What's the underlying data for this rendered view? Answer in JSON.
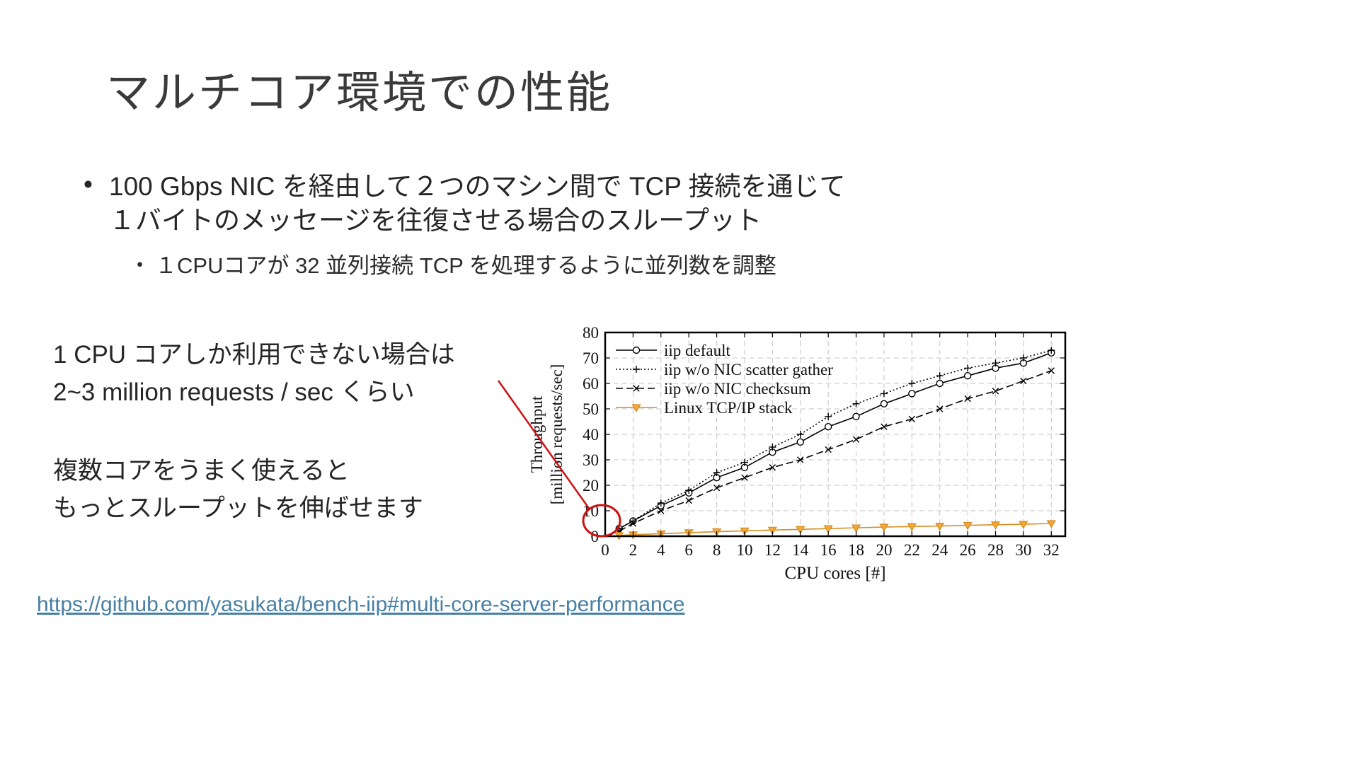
{
  "slide": {
    "title": "マルチコア環境での性能",
    "bullet_char": "•",
    "bullet1_line1": "100 Gbps NIC を経由して２つのマシン間で TCP 接続を通じて",
    "bullet1_line2": "１バイトのメッセージを往復させる場合のスループット",
    "sub_bullet_char": "・",
    "sub_bullet": "１CPUコアが 32 並列接続 TCP を処理するように並列数を調整",
    "note1_line1": "1 CPU コアしか利用できない場合は",
    "note1_line2": "2~3 million requests / sec くらい",
    "note2_line1": "複数コアをうまく使えると",
    "note2_line2": "もっとスループットを伸ばせます",
    "link": "https://github.com/yasukata/bench-iip#multi-core-server-performance"
  },
  "colors": {
    "accent_red": "#cc1111",
    "linux_orange": "#d98c1f",
    "linux_triangle_fill": "#f2a93b",
    "link_blue": "#477fa5",
    "grid_gray": "#c4c4c4",
    "axis_black": "#000000"
  },
  "chart_data": {
    "type": "line",
    "title": "",
    "xlabel": "CPU cores [#]",
    "ylabel": [
      "Throughput",
      "[million requests/sec]"
    ],
    "xlim": [
      0,
      33
    ],
    "ylim": [
      0,
      80
    ],
    "xticks": [
      0,
      2,
      4,
      6,
      8,
      10,
      12,
      14,
      16,
      18,
      20,
      22,
      24,
      26,
      28,
      30,
      32
    ],
    "yticks": [
      0,
      10,
      20,
      30,
      40,
      50,
      60,
      70,
      80
    ],
    "grid": true,
    "legend_position": "top-left",
    "x": [
      1,
      2,
      4,
      6,
      8,
      10,
      12,
      14,
      16,
      18,
      20,
      22,
      24,
      26,
      28,
      30,
      32
    ],
    "series": [
      {
        "name": "iip default",
        "color": "#000000",
        "dash": "",
        "marker": "circle",
        "values": [
          3,
          6,
          12,
          17,
          23,
          27,
          33,
          37,
          43,
          47,
          52,
          56,
          60,
          63,
          66,
          68,
          72
        ]
      },
      {
        "name": "iip w/o NIC scatter gather",
        "color": "#000000",
        "dash": "2,3",
        "marker": "plus",
        "values": [
          3,
          6,
          13,
          18,
          25,
          29,
          35,
          40,
          47,
          52,
          56,
          60,
          63,
          66,
          68,
          70,
          73
        ]
      },
      {
        "name": "iip w/o NIC checksum",
        "color": "#000000",
        "dash": "10,5",
        "marker": "cross",
        "values": [
          2,
          5,
          10,
          14,
          19,
          23,
          27,
          30,
          34,
          38,
          43,
          46,
          50,
          54,
          57,
          61,
          65
        ]
      },
      {
        "name": "Linux TCP/IP stack",
        "color": "#d98c1f",
        "dash": "",
        "marker": "triangle",
        "values": [
          0.3,
          0.6,
          1,
          1.4,
          1.8,
          2.1,
          2.4,
          2.7,
          3,
          3.3,
          3.6,
          3.8,
          4,
          4.3,
          4.5,
          4.7,
          5
        ]
      }
    ]
  }
}
